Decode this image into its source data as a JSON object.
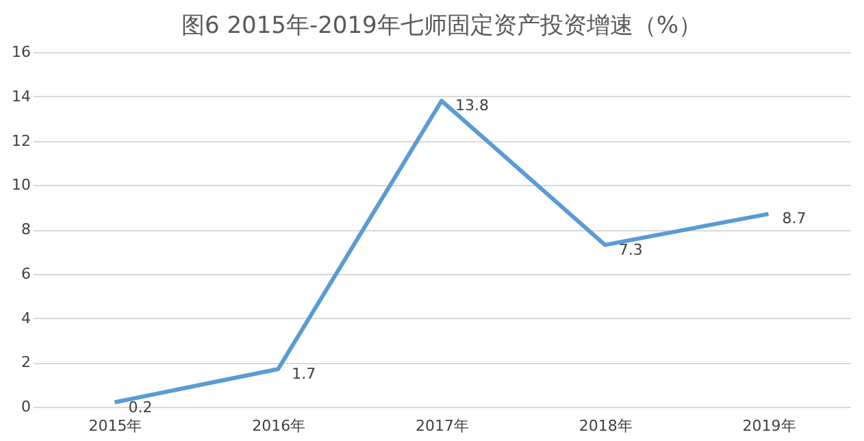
{
  "chart_data": {
    "type": "line",
    "title": "图6 2015年-2019年七师固定资产投资增速（%）",
    "categories": [
      "2015年",
      "2016年",
      "2017年",
      "2018年",
      "2019年"
    ],
    "series": [
      {
        "color": "#5b9bd5",
        "values": [
          0.2,
          1.7,
          13.8,
          7.3,
          8.7
        ]
      }
    ],
    "ylim": [
      0,
      16
    ],
    "yticks": [
      0,
      2,
      4,
      6,
      8,
      10,
      12,
      14,
      16
    ],
    "grid": "y",
    "data_labels": true,
    "marker": "none",
    "line_style": "solid"
  }
}
